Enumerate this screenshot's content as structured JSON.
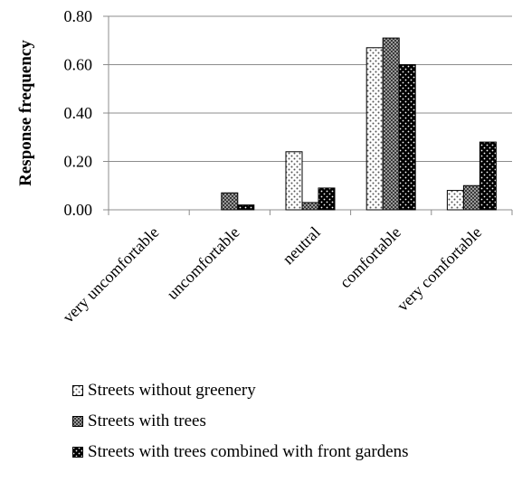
{
  "chart_data": {
    "type": "bar",
    "ylabel": "Response frequency",
    "xlabel": "",
    "ylim": [
      0,
      0.8
    ],
    "yticks": [
      "0.00",
      "0.20",
      "0.40",
      "0.60",
      "0.80"
    ],
    "categories": [
      "very uncomfortable",
      "uncomfortable",
      "neutral",
      "comfortable",
      "very comfortable"
    ],
    "series": [
      {
        "name": "Streets without greenery",
        "values": [
          0.0,
          0.0,
          0.24,
          0.67,
          0.08
        ],
        "pattern": "dots-white"
      },
      {
        "name": "Streets with trees",
        "values": [
          0.0,
          0.07,
          0.03,
          0.71,
          0.1
        ],
        "pattern": "checker-gray"
      },
      {
        "name": "Streets with trees combined with front gardens",
        "values": [
          0.0,
          0.02,
          0.09,
          0.6,
          0.28
        ],
        "pattern": "dots-black"
      }
    ],
    "grid": true,
    "legend_position": "bottom"
  }
}
